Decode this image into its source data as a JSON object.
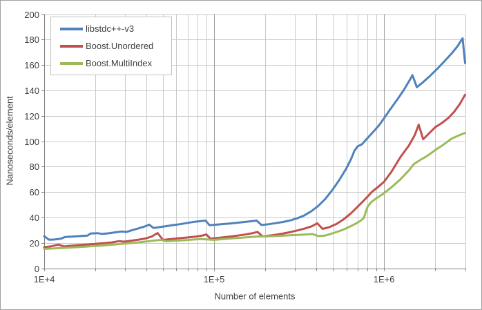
{
  "chart": {
    "background": "#ffffff",
    "frame_border_color": "#a0a0a0",
    "text_color": "#3f3f3f"
  },
  "chart_data": {
    "type": "line",
    "title": "",
    "x_scale": "log",
    "xlabel": "Number of elements",
    "ylabel": "Nanoseconds/element",
    "xlim": [
      10000,
      3000000
    ],
    "ylim": [
      0,
      200
    ],
    "grid": "on",
    "grid_minor_color": "#c9c9c9",
    "grid_major_color": "#9a9a9a",
    "axis_color": "#7f7f7f",
    "y_ticks": [
      0,
      20,
      40,
      60,
      80,
      100,
      120,
      140,
      160,
      180,
      200
    ],
    "x_major_ticks": [
      {
        "label": "1E+4",
        "value": 10000
      },
      {
        "label": "1E+5",
        "value": 100000
      },
      {
        "label": "1E+6",
        "value": 1000000
      }
    ],
    "legend_position": "top-left",
    "series": [
      {
        "name": "libstdc++-v3",
        "color": "#4f81bd",
        "points": [
          [
            10000,
            25.2
          ],
          [
            10700,
            22.4
          ],
          [
            11500,
            22.6
          ],
          [
            12500,
            23.2
          ],
          [
            13300,
            24.6
          ],
          [
            15000,
            25.0
          ],
          [
            16500,
            25.4
          ],
          [
            18000,
            25.7
          ],
          [
            18700,
            27.3
          ],
          [
            20500,
            27.6
          ],
          [
            22000,
            27.0
          ],
          [
            24000,
            27.5
          ],
          [
            26000,
            28.2
          ],
          [
            28500,
            28.9
          ],
          [
            30500,
            28.6
          ],
          [
            33000,
            30.0
          ],
          [
            36000,
            31.4
          ],
          [
            39000,
            32.8
          ],
          [
            41500,
            34.3
          ],
          [
            44000,
            31.7
          ],
          [
            48000,
            32.4
          ],
          [
            52000,
            33.1
          ],
          [
            57000,
            33.9
          ],
          [
            63000,
            34.7
          ],
          [
            70000,
            35.7
          ],
          [
            77000,
            36.6
          ],
          [
            84000,
            37.2
          ],
          [
            89000,
            37.5
          ],
          [
            94000,
            33.9
          ],
          [
            103000,
            34.3
          ],
          [
            113000,
            34.8
          ],
          [
            124000,
            35.2
          ],
          [
            137000,
            35.8
          ],
          [
            151000,
            36.4
          ],
          [
            166000,
            37.0
          ],
          [
            178000,
            37.5
          ],
          [
            190000,
            34.0
          ],
          [
            210000,
            34.7
          ],
          [
            231000,
            35.5
          ],
          [
            254000,
            36.4
          ],
          [
            280000,
            37.6
          ],
          [
            308000,
            39.3
          ],
          [
            339000,
            41.5
          ],
          [
            373000,
            44.8
          ],
          [
            410000,
            49.0
          ],
          [
            451000,
            54.5
          ],
          [
            496000,
            61.5
          ],
          [
            546000,
            69.5
          ],
          [
            600000,
            78.5
          ],
          [
            640000,
            86.0
          ],
          [
            670000,
            92.5
          ],
          [
            700000,
            96.0
          ],
          [
            740000,
            97.5
          ],
          [
            800000,
            102.5
          ],
          [
            880000,
            108.5
          ],
          [
            940000,
            113.0
          ],
          [
            1000000,
            118.0
          ],
          [
            1100000,
            126.0
          ],
          [
            1200000,
            133.0
          ],
          [
            1310000,
            140.5
          ],
          [
            1430000,
            149.0
          ],
          [
            1470000,
            152.0
          ],
          [
            1560000,
            142.5
          ],
          [
            1700000,
            146.5
          ],
          [
            1870000,
            151.5
          ],
          [
            2060000,
            157.0
          ],
          [
            2270000,
            163.0
          ],
          [
            2500000,
            169.0
          ],
          [
            2700000,
            174.5
          ],
          [
            2900000,
            181.0
          ],
          [
            3000000,
            161.5
          ]
        ]
      },
      {
        "name": "Boost.Unordered",
        "color": "#c0504d",
        "points": [
          [
            10000,
            16.5
          ],
          [
            11000,
            17.3
          ],
          [
            12100,
            18.6
          ],
          [
            13100,
            17.2
          ],
          [
            14500,
            17.7
          ],
          [
            16000,
            18.2
          ],
          [
            18000,
            18.7
          ],
          [
            20000,
            19.2
          ],
          [
            22500,
            19.8
          ],
          [
            25000,
            20.3
          ],
          [
            27500,
            21.3
          ],
          [
            29500,
            20.9
          ],
          [
            32500,
            21.7
          ],
          [
            36000,
            22.5
          ],
          [
            39500,
            23.4
          ],
          [
            43000,
            25.0
          ],
          [
            46500,
            27.7
          ],
          [
            50000,
            22.3
          ],
          [
            55000,
            22.9
          ],
          [
            60000,
            23.4
          ],
          [
            66000,
            23.9
          ],
          [
            72000,
            24.4
          ],
          [
            79000,
            25.0
          ],
          [
            86000,
            25.8
          ],
          [
            90000,
            26.6
          ],
          [
            95000,
            23.3
          ],
          [
            104000,
            23.8
          ],
          [
            114000,
            24.4
          ],
          [
            126000,
            25.0
          ],
          [
            138000,
            25.7
          ],
          [
            152000,
            26.5
          ],
          [
            167000,
            27.5
          ],
          [
            180000,
            28.6
          ],
          [
            193000,
            25.0
          ],
          [
            212000,
            25.7
          ],
          [
            233000,
            26.4
          ],
          [
            256000,
            27.4
          ],
          [
            282000,
            28.5
          ],
          [
            310000,
            29.8
          ],
          [
            341000,
            31.2
          ],
          [
            375000,
            33.0
          ],
          [
            405000,
            35.4
          ],
          [
            435000,
            31.0
          ],
          [
            478000,
            32.4
          ],
          [
            526000,
            34.9
          ],
          [
            578000,
            38.5
          ],
          [
            636000,
            43.0
          ],
          [
            700000,
            48.5
          ],
          [
            770000,
            54.0
          ],
          [
            847000,
            60.0
          ],
          [
            932000,
            64.5
          ],
          [
            1000000,
            68.0
          ],
          [
            1100000,
            75.5
          ],
          [
            1250000,
            87.5
          ],
          [
            1400000,
            96.5
          ],
          [
            1520000,
            105.0
          ],
          [
            1600000,
            113.0
          ],
          [
            1700000,
            101.5
          ],
          [
            1870000,
            107.0
          ],
          [
            2000000,
            111.0
          ],
          [
            2200000,
            114.5
          ],
          [
            2400000,
            118.5
          ],
          [
            2600000,
            123.5
          ],
          [
            2800000,
            129.5
          ],
          [
            3000000,
            136.5
          ]
        ]
      },
      {
        "name": "Boost.MultiIndex",
        "color": "#9bbb59",
        "points": [
          [
            10000,
            15.2
          ],
          [
            11500,
            15.6
          ],
          [
            13000,
            16.0
          ],
          [
            15000,
            16.4
          ],
          [
            17500,
            17.0
          ],
          [
            20000,
            17.5
          ],
          [
            23000,
            18.1
          ],
          [
            26000,
            18.7
          ],
          [
            30000,
            19.4
          ],
          [
            34000,
            20.0
          ],
          [
            38000,
            20.7
          ],
          [
            42000,
            21.4
          ],
          [
            46000,
            22.0
          ],
          [
            49000,
            22.3
          ],
          [
            52000,
            21.2
          ],
          [
            57000,
            21.5
          ],
          [
            63000,
            21.9
          ],
          [
            69000,
            22.2
          ],
          [
            76000,
            22.6
          ],
          [
            84000,
            23.0
          ],
          [
            92000,
            22.6
          ],
          [
            100000,
            22.3
          ],
          [
            110000,
            22.8
          ],
          [
            122000,
            23.3
          ],
          [
            135000,
            23.8
          ],
          [
            150000,
            24.2
          ],
          [
            165000,
            24.6
          ],
          [
            180000,
            25.0
          ],
          [
            200000,
            25.0
          ],
          [
            225000,
            25.3
          ],
          [
            250000,
            25.6
          ],
          [
            280000,
            25.9
          ],
          [
            310000,
            26.2
          ],
          [
            345000,
            26.6
          ],
          [
            380000,
            26.9
          ],
          [
            410000,
            25.3
          ],
          [
            450000,
            25.7
          ],
          [
            490000,
            27.2
          ],
          [
            540000,
            29.0
          ],
          [
            590000,
            31.0
          ],
          [
            640000,
            33.2
          ],
          [
            690000,
            35.5
          ],
          [
            730000,
            37.5
          ],
          [
            760000,
            39.5
          ],
          [
            800000,
            48.5
          ],
          [
            840000,
            52.0
          ],
          [
            900000,
            55.0
          ],
          [
            1000000,
            59.0
          ],
          [
            1100000,
            63.5
          ],
          [
            1250000,
            70.0
          ],
          [
            1400000,
            77.0
          ],
          [
            1500000,
            82.0
          ],
          [
            1600000,
            84.5
          ],
          [
            1800000,
            88.5
          ],
          [
            2000000,
            93.0
          ],
          [
            2250000,
            97.5
          ],
          [
            2500000,
            102.0
          ],
          [
            2750000,
            104.5
          ],
          [
            3000000,
            106.5
          ]
        ]
      }
    ]
  }
}
